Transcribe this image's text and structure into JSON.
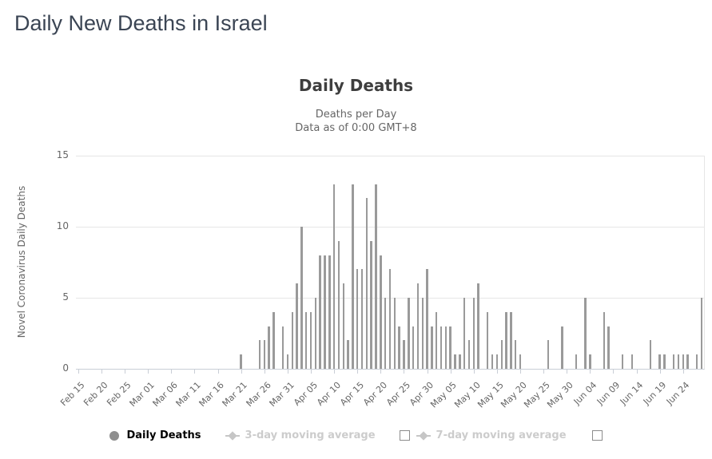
{
  "page": {
    "title": "Daily New Deaths in Israel"
  },
  "chart": {
    "title": "Daily Deaths",
    "subtitle_line1": "Deaths per Day",
    "subtitle_line2": "Data as of 0:00 GMT+8",
    "y_axis_title": "Novel Coronavirus Daily Deaths"
  },
  "chart_data": {
    "type": "bar",
    "title": "Daily Deaths",
    "xlabel": "",
    "ylabel": "Novel Coronavirus Daily Deaths",
    "ylim": [
      0,
      15
    ],
    "yticks": [
      0,
      5,
      10,
      15
    ],
    "grid": true,
    "legend_position": "bottom",
    "bar_color": "#9a9a9a",
    "x_unit": "day",
    "x_start": "Feb 15",
    "x_end": "Jun 28",
    "xtick_every_days": 5,
    "xtick_labels": [
      "Feb 15",
      "Feb 20",
      "Feb 25",
      "Mar 01",
      "Mar 06",
      "Mar 11",
      "Mar 16",
      "Mar 21",
      "Mar 26",
      "Mar 31",
      "Apr 05",
      "Apr 10",
      "Apr 15",
      "Apr 20",
      "Apr 25",
      "Apr 30",
      "May 05",
      "May 10",
      "May 15",
      "May 20",
      "May 25",
      "May 30",
      "Jun 04",
      "Jun 09",
      "Jun 14",
      "Jun 19",
      "Jun 24"
    ],
    "dates": [
      "Feb 15",
      "Feb 16",
      "Feb 17",
      "Feb 18",
      "Feb 19",
      "Feb 20",
      "Feb 21",
      "Feb 22",
      "Feb 23",
      "Feb 24",
      "Feb 25",
      "Feb 26",
      "Feb 27",
      "Feb 28",
      "Feb 29",
      "Mar 01",
      "Mar 02",
      "Mar 03",
      "Mar 04",
      "Mar 05",
      "Mar 06",
      "Mar 07",
      "Mar 08",
      "Mar 09",
      "Mar 10",
      "Mar 11",
      "Mar 12",
      "Mar 13",
      "Mar 14",
      "Mar 15",
      "Mar 16",
      "Mar 17",
      "Mar 18",
      "Mar 19",
      "Mar 20",
      "Mar 21",
      "Mar 22",
      "Mar 23",
      "Mar 24",
      "Mar 25",
      "Mar 26",
      "Mar 27",
      "Mar 28",
      "Mar 29",
      "Mar 30",
      "Mar 31",
      "Apr 01",
      "Apr 02",
      "Apr 03",
      "Apr 04",
      "Apr 05",
      "Apr 06",
      "Apr 07",
      "Apr 08",
      "Apr 09",
      "Apr 10",
      "Apr 11",
      "Apr 12",
      "Apr 13",
      "Apr 14",
      "Apr 15",
      "Apr 16",
      "Apr 17",
      "Apr 18",
      "Apr 19",
      "Apr 20",
      "Apr 21",
      "Apr 22",
      "Apr 23",
      "Apr 24",
      "Apr 25",
      "Apr 26",
      "Apr 27",
      "Apr 28",
      "Apr 29",
      "Apr 30",
      "May 01",
      "May 02",
      "May 03",
      "May 04",
      "May 05",
      "May 06",
      "May 07",
      "May 08",
      "May 09",
      "May 10",
      "May 11",
      "May 12",
      "May 13",
      "May 14",
      "May 15",
      "May 16",
      "May 17",
      "May 18",
      "May 19",
      "May 20",
      "May 21",
      "May 22",
      "May 23",
      "May 24",
      "May 25",
      "May 26",
      "May 27",
      "May 28",
      "May 29",
      "May 30",
      "May 31",
      "Jun 01",
      "Jun 02",
      "Jun 03",
      "Jun 04",
      "Jun 05",
      "Jun 06",
      "Jun 07",
      "Jun 08",
      "Jun 09",
      "Jun 10",
      "Jun 11",
      "Jun 12",
      "Jun 13",
      "Jun 14",
      "Jun 15",
      "Jun 16",
      "Jun 17",
      "Jun 18",
      "Jun 19",
      "Jun 20",
      "Jun 21",
      "Jun 22",
      "Jun 23",
      "Jun 24",
      "Jun 25",
      "Jun 26",
      "Jun 27",
      "Jun 28"
    ],
    "values": [
      0,
      0,
      0,
      0,
      0,
      0,
      0,
      0,
      0,
      0,
      0,
      0,
      0,
      0,
      0,
      0,
      0,
      0,
      0,
      0,
      0,
      0,
      0,
      0,
      0,
      0,
      0,
      0,
      0,
      0,
      0,
      0,
      0,
      0,
      0,
      1,
      0,
      0,
      0,
      2,
      2,
      3,
      4,
      0,
      3,
      1,
      4,
      6,
      10,
      4,
      4,
      5,
      8,
      8,
      8,
      13,
      9,
      6,
      2,
      13,
      7,
      7,
      12,
      9,
      13,
      8,
      5,
      7,
      5,
      3,
      2,
      5,
      3,
      6,
      5,
      7,
      3,
      4,
      3,
      3,
      3,
      1,
      1,
      5,
      2,
      5,
      6,
      0,
      4,
      1,
      1,
      2,
      4,
      4,
      2,
      1,
      0,
      0,
      0,
      0,
      0,
      2,
      0,
      0,
      3,
      0,
      0,
      1,
      0,
      5,
      1,
      0,
      0,
      4,
      3,
      0,
      0,
      1,
      0,
      1,
      0,
      0,
      0,
      2,
      0,
      1,
      1,
      0,
      1,
      1,
      1,
      1,
      0,
      1,
      5
    ]
  },
  "legend": {
    "items": [
      {
        "label": "Daily Deaths",
        "marker": "circle",
        "enabled": true,
        "has_checkbox": false
      },
      {
        "label": "3-day moving average",
        "marker": "diamond-line",
        "enabled": false,
        "has_checkbox": true,
        "checkbox_checked": false
      },
      {
        "label": "7-day moving average",
        "marker": "diamond-line",
        "enabled": false,
        "has_checkbox": true,
        "checkbox_checked": false
      }
    ]
  },
  "colors": {
    "bar": "#9a9a9a",
    "page_title": "#3b4554",
    "chart_title": "#3e3e3e",
    "subtitle": "#666666",
    "axis_label": "#666666",
    "grid": "#e6e6e6",
    "axis_line": "#c9ced6",
    "legend_enabled_text": "#000000",
    "legend_disabled_text": "#cccccc",
    "legend_disabled_marker": "#c6c6c6",
    "legend_circle": "#8f8f8f"
  }
}
